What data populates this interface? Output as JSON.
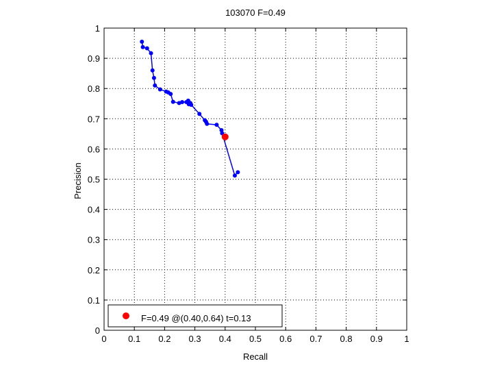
{
  "chart_data": {
    "type": "line",
    "title": "103070 F=0.49",
    "xlabel": "Recall",
    "ylabel": "Precision",
    "xlim": [
      0,
      1
    ],
    "ylim": [
      0,
      1
    ],
    "xticks": [
      "0",
      "0.1",
      "0.2",
      "0.3",
      "0.4",
      "0.5",
      "0.6",
      "0.7",
      "0.8",
      "0.9",
      "1"
    ],
    "yticks": [
      "0",
      "0.1",
      "0.2",
      "0.3",
      "0.4",
      "0.5",
      "0.6",
      "0.7",
      "0.8",
      "0.9",
      "1"
    ],
    "grid": true,
    "legend": {
      "location": "bottom-left",
      "text": "F=0.49 @(0.40,0.64) t=0.13"
    },
    "series": [
      {
        "color": "#0000ff",
        "marker": "dot",
        "points": [
          [
            0.125,
            0.955
          ],
          [
            0.128,
            0.937
          ],
          [
            0.142,
            0.933
          ],
          [
            0.155,
            0.917
          ],
          [
            0.16,
            0.86
          ],
          [
            0.165,
            0.835
          ],
          [
            0.168,
            0.81
          ],
          [
            0.185,
            0.797
          ],
          [
            0.205,
            0.79
          ],
          [
            0.212,
            0.787
          ],
          [
            0.22,
            0.782
          ],
          [
            0.228,
            0.756
          ],
          [
            0.248,
            0.752
          ],
          [
            0.258,
            0.755
          ],
          [
            0.272,
            0.755
          ],
          [
            0.278,
            0.76
          ],
          [
            0.28,
            0.748
          ],
          [
            0.285,
            0.752
          ],
          [
            0.288,
            0.746
          ],
          [
            0.315,
            0.716
          ],
          [
            0.333,
            0.695
          ],
          [
            0.337,
            0.69
          ],
          [
            0.34,
            0.683
          ],
          [
            0.372,
            0.68
          ],
          [
            0.388,
            0.662
          ],
          [
            0.39,
            0.652
          ],
          [
            0.432,
            0.512
          ],
          [
            0.442,
            0.523
          ]
        ]
      }
    ],
    "best_point": {
      "recall": 0.4,
      "precision": 0.64,
      "color": "#ff0000"
    }
  }
}
